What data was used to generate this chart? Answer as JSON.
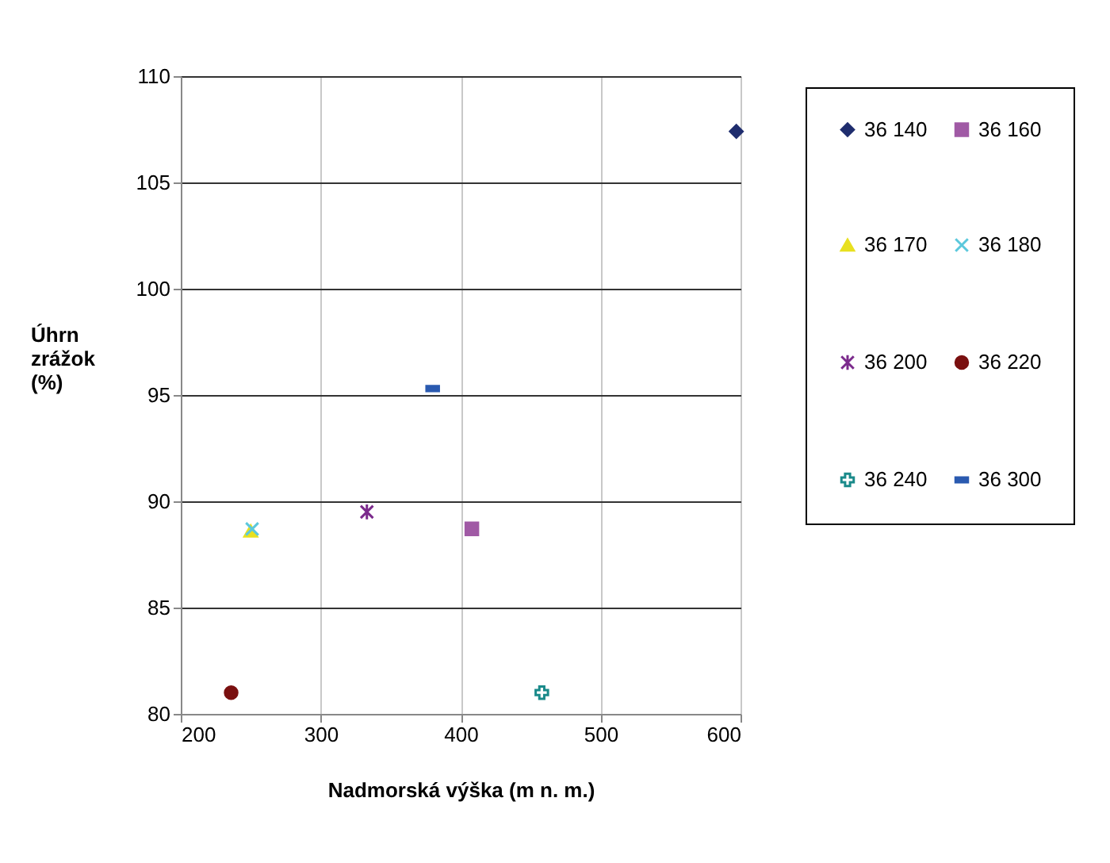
{
  "chart_data": {
    "type": "scatter",
    "xlabel": "Nadmorská výška (m n. m.)",
    "ylabel": "Úhrn zrážok (%)",
    "xlim": [
      200,
      600
    ],
    "xticks": [
      200,
      300,
      400,
      500,
      600
    ],
    "ylim": [
      80,
      110
    ],
    "yticks": [
      80,
      85,
      90,
      95,
      100,
      105,
      110
    ],
    "grid": true,
    "legend": "right",
    "series": [
      {
        "name": "36 140",
        "color": "#1f2d6e",
        "marker": "diamond",
        "x": [
          597
        ],
        "values": [
          107.4
        ]
      },
      {
        "name": "36 160",
        "color": "#a05aa5",
        "marker": "square",
        "x": [
          408
        ],
        "values": [
          88.7
        ]
      },
      {
        "name": "36 170",
        "color": "#e8e020",
        "marker": "triangle",
        "x": [
          250
        ],
        "values": [
          88.6
        ]
      },
      {
        "name": "36 180",
        "color": "#5bc8dc",
        "marker": "cross",
        "x": [
          251
        ],
        "values": [
          88.7
        ]
      },
      {
        "name": "36 200",
        "color": "#7b2a8c",
        "marker": "cross",
        "x": [
          333
        ],
        "values": [
          89.5
        ]
      },
      {
        "name": "36 220",
        "color": "#7a1010",
        "marker": "circle",
        "x": [
          236
        ],
        "values": [
          81.0
        ]
      },
      {
        "name": "36 240",
        "color": "#1a8a8a",
        "marker": "cross",
        "x": [
          458
        ],
        "values": [
          81.0
        ]
      },
      {
        "name": "36 300",
        "color": "#2a5ab0",
        "x": [
          380
        ],
        "values": [
          95.3
        ]
      }
    ]
  }
}
